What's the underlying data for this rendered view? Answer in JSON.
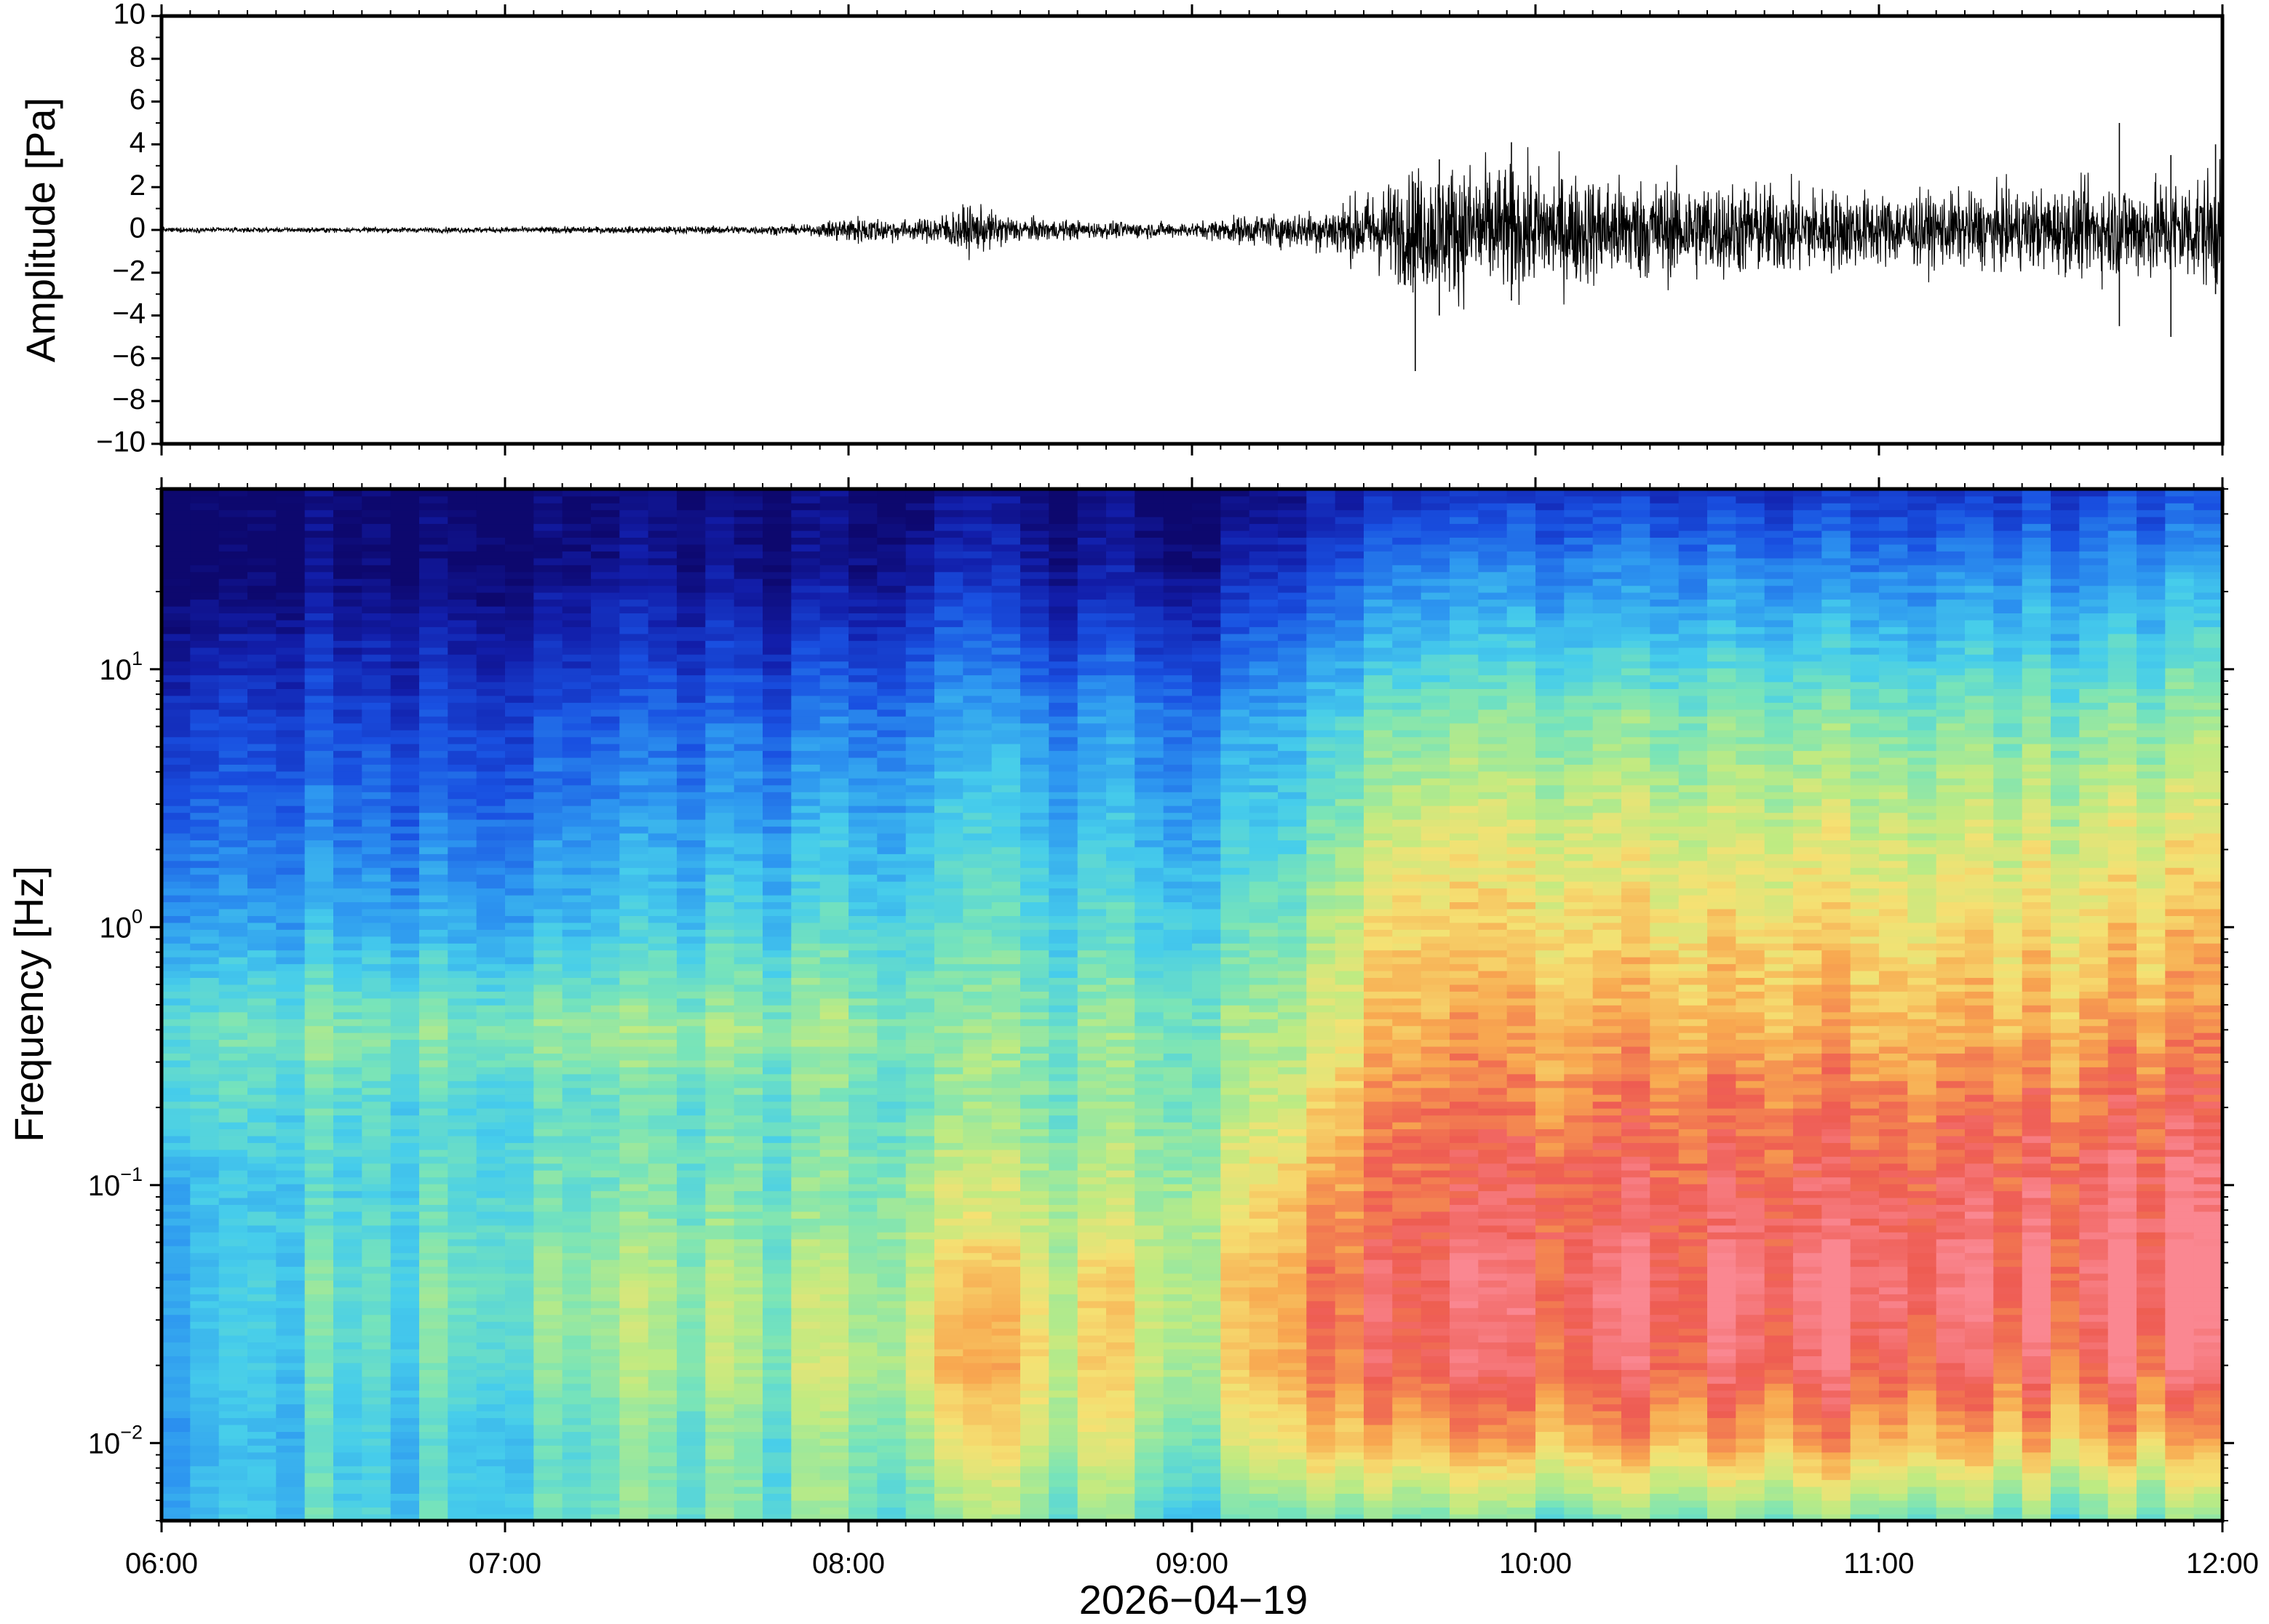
{
  "chart_data": [
    {
      "type": "line",
      "ylabel": "Amplitude [Pa]",
      "ylim": [
        -10,
        10
      ],
      "yticks": [
        10,
        8,
        6,
        4,
        2,
        0,
        -2,
        -4,
        -6,
        -8,
        -10
      ],
      "ytick_labels": [
        "10",
        "8",
        "6",
        "4",
        "2",
        "0",
        "−2",
        "−4",
        "−6",
        "−8",
        "−10"
      ],
      "x_range": [
        "06:00",
        "12:00"
      ],
      "grid": false,
      "series": [
        {
          "x_hours": [
            6.0,
            6.5,
            7.0,
            7.5,
            7.9,
            8.0,
            8.2,
            8.35,
            8.5,
            8.7,
            9.0,
            9.15,
            9.35,
            9.5,
            9.65,
            9.8,
            10.0,
            10.2,
            10.5,
            10.8,
            11.0,
            11.2,
            11.5,
            11.7,
            11.9,
            12.0
          ],
          "amplitude_envelope_pa": [
            0.1,
            0.1,
            0.12,
            0.15,
            0.2,
            0.6,
            0.4,
            1.0,
            0.5,
            0.35,
            0.3,
            0.6,
            0.8,
            1.5,
            2.5,
            2.8,
            2.5,
            2.2,
            2.0,
            1.8,
            1.5,
            1.5,
            1.7,
            2.0,
            2.2,
            2.5
          ],
          "spikes": [
            {
              "x_hours": 9.65,
              "min_pa": -6.6,
              "max_pa": 2.2
            },
            {
              "x_hours": 9.72,
              "min_pa": -4.0,
              "max_pa": 3.3
            },
            {
              "x_hours": 9.93,
              "min_pa": -3.3,
              "max_pa": 4.1
            },
            {
              "x_hours": 11.7,
              "min_pa": -4.5,
              "max_pa": 5.0
            },
            {
              "x_hours": 11.85,
              "min_pa": -5.0,
              "max_pa": 3.5
            },
            {
              "x_hours": 11.98,
              "min_pa": -3.0,
              "max_pa": 4.0
            }
          ]
        }
      ]
    },
    {
      "type": "heatmap",
      "ylabel": "Frequency [Hz]",
      "xlabel": "2026−04−19",
      "yscale": "log",
      "ylim": [
        0.005,
        50
      ],
      "ytick_labels": [
        {
          "base": "10",
          "exp": "−2",
          "value": 0.01
        },
        {
          "base": "10",
          "exp": "−1",
          "value": 0.1
        },
        {
          "base": "10",
          "exp": "0",
          "value": 1
        },
        {
          "base": "10",
          "exp": "1",
          "value": 10
        }
      ],
      "x_categories": [
        "06:00",
        "07:00",
        "08:00",
        "09:00",
        "10:00",
        "11:00",
        "12:00"
      ],
      "x_range_hours": [
        6,
        12
      ],
      "colormap": "rainbow (dark blue = low power, red = high power)",
      "relative_power_profiles": {
        "log10_freq_nodes": [
          -2.3,
          -2.0,
          -1.7,
          -1.4,
          -1.0,
          -0.7,
          -0.4,
          0.0,
          0.4,
          0.8,
          1.1,
          1.4,
          1.7
        ],
        "time_hours": [
          6.0,
          7.0,
          8.0,
          8.3,
          8.6,
          9.0,
          9.3,
          9.6,
          10.0,
          11.0,
          11.7,
          12.0
        ],
        "levels": [
          [
            0.45,
            0.42,
            0.44,
            0.44,
            0.42,
            0.5,
            0.55,
            0.38,
            0.28,
            0.2,
            0.1,
            0.0,
            0.0
          ],
          [
            0.5,
            0.48,
            0.55,
            0.58,
            0.52,
            0.5,
            0.58,
            0.4,
            0.3,
            0.2,
            0.12,
            0.03,
            0.0
          ],
          [
            0.55,
            0.55,
            0.62,
            0.6,
            0.55,
            0.52,
            0.6,
            0.48,
            0.38,
            0.28,
            0.15,
            0.03,
            0.0
          ],
          [
            0.56,
            0.68,
            0.78,
            0.74,
            0.66,
            0.58,
            0.58,
            0.5,
            0.44,
            0.36,
            0.24,
            0.12,
            0.03
          ],
          [
            0.55,
            0.66,
            0.72,
            0.7,
            0.62,
            0.56,
            0.56,
            0.48,
            0.4,
            0.32,
            0.18,
            0.06,
            0.0
          ],
          [
            0.5,
            0.6,
            0.68,
            0.7,
            0.64,
            0.58,
            0.58,
            0.48,
            0.4,
            0.32,
            0.2,
            0.06,
            0.0
          ],
          [
            0.55,
            0.75,
            0.84,
            0.84,
            0.78,
            0.7,
            0.64,
            0.56,
            0.48,
            0.4,
            0.28,
            0.16,
            0.05
          ],
          [
            0.55,
            0.8,
            0.92,
            0.94,
            0.9,
            0.88,
            0.82,
            0.76,
            0.68,
            0.56,
            0.42,
            0.3,
            0.14
          ],
          [
            0.55,
            0.82,
            0.93,
            0.96,
            0.92,
            0.88,
            0.82,
            0.76,
            0.68,
            0.58,
            0.44,
            0.32,
            0.16
          ],
          [
            0.55,
            0.8,
            0.92,
            0.96,
            0.92,
            0.88,
            0.8,
            0.74,
            0.66,
            0.56,
            0.42,
            0.3,
            0.14
          ],
          [
            0.55,
            0.8,
            0.94,
            0.99,
            0.96,
            0.9,
            0.84,
            0.76,
            0.68,
            0.58,
            0.46,
            0.34,
            0.18
          ],
          [
            0.55,
            0.78,
            0.92,
            0.99,
            0.96,
            0.9,
            0.84,
            0.78,
            0.7,
            0.6,
            0.48,
            0.36,
            0.2
          ]
        ]
      }
    }
  ]
}
